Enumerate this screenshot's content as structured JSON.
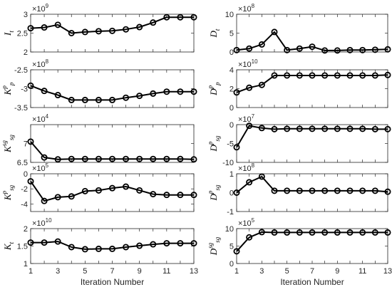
{
  "chart_data": [
    {
      "id": "It",
      "type": "line",
      "symbol": "I",
      "sub": "t",
      "sup": "",
      "exponent": "9",
      "x": [
        1,
        2,
        3,
        4,
        5,
        6,
        7,
        8,
        9,
        10,
        11,
        12,
        13
      ],
      "values": [
        2.63,
        2.65,
        2.72,
        2.5,
        2.53,
        2.55,
        2.56,
        2.6,
        2.66,
        2.78,
        2.92,
        2.92,
        2.92
      ],
      "ylim": [
        2,
        3
      ],
      "yticks": [
        2,
        2.5,
        3
      ],
      "yticklabels": [
        "2",
        "2.5",
        "3"
      ]
    },
    {
      "id": "Kpp",
      "type": "line",
      "symbol": "K",
      "sub": "p",
      "sup": "p",
      "exponent": "8",
      "x": [
        1,
        2,
        3,
        4,
        5,
        6,
        7,
        8,
        9,
        10,
        11,
        12,
        13
      ],
      "values": [
        -2.92,
        -3.06,
        -3.17,
        -3.3,
        -3.3,
        -3.3,
        -3.3,
        -3.24,
        -3.19,
        -3.13,
        -3.08,
        -3.08,
        -3.08
      ],
      "ylim": [
        -3.5,
        -2.5
      ],
      "yticks": [
        -3.5,
        -3,
        -2.5
      ],
      "yticklabels": [
        "-3.5",
        "-3",
        "-2.5"
      ]
    },
    {
      "id": "Ksgsg",
      "type": "line",
      "symbol": "K",
      "sub": "sg",
      "sup": "sg",
      "exponent": "4",
      "x": [
        1,
        2,
        3,
        4,
        5,
        6,
        7,
        8,
        9,
        10,
        11,
        12,
        13
      ],
      "values": [
        7.05,
        6.63,
        6.58,
        6.59,
        6.59,
        6.59,
        6.59,
        6.59,
        6.59,
        6.59,
        6.59,
        6.59,
        6.58
      ],
      "ylim": [
        6.5,
        7.5
      ],
      "yticks": [
        6.5,
        7
      ],
      "yticklabels": [
        "6.5",
        "7"
      ]
    },
    {
      "id": "Kpsg",
      "type": "line",
      "symbol": "K",
      "sub": "sg",
      "sup": "p",
      "exponent": "5",
      "x": [
        1,
        2,
        3,
        4,
        5,
        6,
        7,
        8,
        9,
        10,
        11,
        12,
        13
      ],
      "values": [
        -1.0,
        -3.6,
        -3.1,
        -3.0,
        -2.3,
        -2.2,
        -1.9,
        -1.7,
        -2.2,
        -2.7,
        -2.8,
        -2.8,
        -2.8
      ],
      "ylim": [
        -5,
        0
      ],
      "yticks": [
        -4,
        -2,
        0
      ],
      "yticklabels": [
        "-4",
        "-2",
        "0"
      ]
    },
    {
      "id": "Kt",
      "type": "line",
      "symbol": "K",
      "sub": "t",
      "sup": "",
      "exponent": "10",
      "x": [
        1,
        2,
        3,
        4,
        5,
        6,
        7,
        8,
        9,
        10,
        11,
        12,
        13
      ],
      "values": [
        1.6,
        1.6,
        1.63,
        1.47,
        1.41,
        1.42,
        1.42,
        1.47,
        1.51,
        1.55,
        1.58,
        1.58,
        1.58
      ],
      "ylim": [
        1,
        2
      ],
      "yticks": [
        1,
        1.5,
        2
      ],
      "yticklabels": [
        "1",
        "1.5",
        "2"
      ],
      "xticks": [
        1,
        3,
        5,
        7,
        9,
        11,
        13
      ],
      "xticklabels": [
        "1",
        "3",
        "5",
        "7",
        "9",
        "11",
        "13"
      ],
      "xlabel": "Iteration Number"
    },
    {
      "id": "Dt",
      "type": "line",
      "symbol": "D",
      "sub": "t",
      "sup": "",
      "exponent": "8",
      "x": [
        1,
        2,
        3,
        4,
        5,
        6,
        7,
        8,
        9,
        10,
        11,
        12,
        13
      ],
      "values": [
        0.5,
        0.9,
        2.0,
        5.3,
        0.5,
        0.9,
        1.4,
        0.4,
        0.4,
        0.5,
        0.5,
        0.6,
        0.7
      ],
      "ylim": [
        0,
        10
      ],
      "yticks": [
        0,
        5,
        10
      ],
      "yticklabels": [
        "0",
        "5",
        "10"
      ]
    },
    {
      "id": "Dpp",
      "type": "line",
      "symbol": "D",
      "sub": "p",
      "sup": "p",
      "exponent": "10",
      "x": [
        1,
        2,
        3,
        4,
        5,
        6,
        7,
        8,
        9,
        10,
        11,
        12,
        13
      ],
      "values": [
        1.6,
        2.1,
        2.4,
        3.4,
        3.4,
        3.4,
        3.4,
        3.4,
        3.4,
        3.4,
        3.4,
        3.4,
        3.45
      ],
      "ylim": [
        0,
        4
      ],
      "yticks": [
        0,
        2,
        4
      ],
      "yticklabels": [
        "0",
        "2",
        "4"
      ]
    },
    {
      "id": "Dpsg1",
      "type": "line",
      "symbol": "D",
      "sub": "sg",
      "sup": "p",
      "exponent": "7",
      "x": [
        1,
        2,
        3,
        4,
        5,
        6,
        7,
        8,
        9,
        10,
        11,
        12,
        13
      ],
      "values": [
        -6.0,
        -0.3,
        -0.9,
        -1.2,
        -1.1,
        -1.1,
        -1.1,
        -1.1,
        -1.1,
        -1.1,
        -1.1,
        -1.2,
        -1.2
      ],
      "ylim": [
        -10,
        0
      ],
      "yticks": [
        -10,
        -5,
        0
      ],
      "yticklabels": [
        "-10",
        "-5",
        "0"
      ]
    },
    {
      "id": "Dpsg2",
      "type": "line",
      "symbol": "D",
      "sub": "sg",
      "sup": "p",
      "exponent": "8",
      "x": [
        1,
        2,
        3,
        4,
        5,
        6,
        7,
        8,
        9,
        10,
        11,
        12,
        13
      ],
      "values": [
        0.0,
        0.55,
        0.85,
        0.1,
        0.1,
        0.1,
        0.1,
        0.1,
        0.1,
        0.1,
        0.1,
        0.1,
        0.05
      ],
      "ylim": [
        -1,
        1
      ],
      "yticks": [
        -1,
        0,
        1
      ],
      "yticklabels": [
        "-1",
        "0",
        "1"
      ]
    },
    {
      "id": "Dsgsg",
      "type": "line",
      "symbol": "D",
      "sub": "sg",
      "sup": "sg",
      "exponent": "5",
      "x": [
        1,
        2,
        3,
        4,
        5,
        6,
        7,
        8,
        9,
        10,
        11,
        12,
        13
      ],
      "values": [
        3.5,
        7.5,
        9.0,
        8.9,
        8.9,
        8.9,
        8.9,
        8.9,
        8.9,
        8.9,
        8.9,
        8.9,
        8.9
      ],
      "ylim": [
        0,
        10
      ],
      "yticks": [
        0,
        5,
        10
      ],
      "yticklabels": [
        "0",
        "5",
        "10"
      ],
      "xticks": [
        1,
        3,
        5,
        7,
        9,
        11,
        13
      ],
      "xticklabels": [
        "1",
        "3",
        "5",
        "7",
        "9",
        "11",
        "13"
      ],
      "xlabel": "Iteration Number"
    }
  ]
}
